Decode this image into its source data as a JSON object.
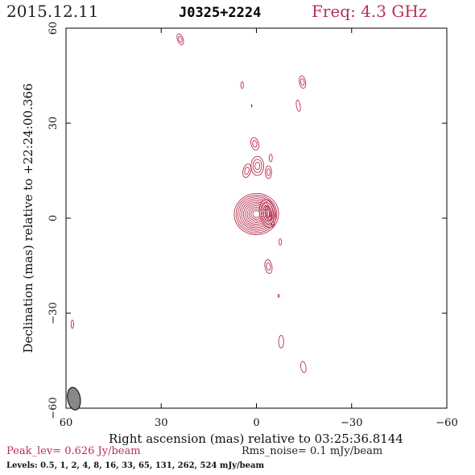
{
  "header": {
    "date": "2015.12.11",
    "source": "J0325+2224",
    "freq": "Freq: 4.3 GHz"
  },
  "footer": {
    "peak": "Peak_lev=  0.626 Jy/beam",
    "noise": "Rms_noise=  0.1 mJy/beam",
    "levels": "Levels: 0.5,    1,    2,    4,    8,   16,   33,   65,  131,  262,  524 mJy/beam"
  },
  "colors": {
    "contour": "#b8304f",
    "peak_text": "#b8304f",
    "beam_fill": "#888888"
  },
  "chart_data": {
    "type": "contour",
    "xlabel": "Right ascension (mas) relative to 03:25:36.8144",
    "ylabel": "Declination (mas) relative to +22:24:00.366",
    "xlim": [
      60,
      -60
    ],
    "ylim": [
      -60,
      60
    ],
    "x_ticks": [
      60,
      30,
      0,
      -30,
      -60
    ],
    "y_ticks": [
      60,
      30,
      0,
      -30,
      -60
    ],
    "x_tick_labels": [
      "60",
      "30",
      "0",
      "−30",
      "−60"
    ],
    "y_tick_labels": [
      "60",
      "30",
      "0",
      "−30",
      "−60"
    ],
    "contour_levels_mJy": [
      0.5,
      1,
      2,
      4,
      8,
      16,
      33,
      65,
      131,
      262,
      524
    ],
    "peak_Jy_per_beam": 0.626,
    "rms_noise_mJy_per_beam": 0.1,
    "beam": {
      "x": 57.5,
      "y": -57,
      "major_mas": 3.6,
      "minor_mas": 2.0,
      "pa_deg": -10
    },
    "components": [
      {
        "x": 0.0,
        "y": 1.3,
        "levels": 11,
        "rx": 7.0,
        "ry": 6.5,
        "rot": -5
      },
      {
        "x": -3.5,
        "y": 1.5,
        "levels": 4,
        "rx": 2.5,
        "ry": 4.5,
        "rot": -10
      },
      {
        "x": -0.3,
        "y": 16.5,
        "levels": 3,
        "rx": 2.0,
        "ry": 3.0,
        "rot": 0
      },
      {
        "x": 0.5,
        "y": 23.5,
        "levels": 2,
        "rx": 1.2,
        "ry": 2.0,
        "rot": -15
      },
      {
        "x": 3.0,
        "y": 15.0,
        "levels": 2,
        "rx": 1.2,
        "ry": 2.2,
        "rot": 15
      },
      {
        "x": -3.8,
        "y": 14.5,
        "levels": 2,
        "rx": 1.0,
        "ry": 2.0,
        "rot": 0
      },
      {
        "x": -4.5,
        "y": 19.0,
        "levels": 1,
        "rx": 0.5,
        "ry": 1.2,
        "rot": 0
      },
      {
        "x": -3.8,
        "y": 1.5,
        "levels": 2,
        "rx": 0.9,
        "ry": 2.2,
        "rot": -15
      },
      {
        "x": -5.2,
        "y": -2.0,
        "levels": 1,
        "rx": 0.4,
        "ry": 0.9,
        "rot": 0
      },
      {
        "x": -7.5,
        "y": -7.5,
        "levels": 1,
        "rx": 0.4,
        "ry": 1.0,
        "rot": 0
      },
      {
        "x": -3.8,
        "y": -15.3,
        "levels": 2,
        "rx": 1.1,
        "ry": 2.2,
        "rot": -10
      },
      {
        "x": -7.0,
        "y": -24.5,
        "levels": 1,
        "rx": 0.2,
        "ry": 0.5,
        "rot": 0
      },
      {
        "x": -7.8,
        "y": -39.0,
        "levels": 1,
        "rx": 0.8,
        "ry": 2.0,
        "rot": 0
      },
      {
        "x": -14.8,
        "y": -47.0,
        "levels": 1,
        "rx": 0.8,
        "ry": 1.8,
        "rot": -10
      },
      {
        "x": 24.0,
        "y": 56.5,
        "levels": 2,
        "rx": 0.9,
        "ry": 1.8,
        "rot": -20
      },
      {
        "x": 4.5,
        "y": 42.0,
        "levels": 1,
        "rx": 0.4,
        "ry": 1.1,
        "rot": 0
      },
      {
        "x": 1.5,
        "y": 35.5,
        "levels": 1,
        "rx": 0.1,
        "ry": 0.4,
        "rot": 0
      },
      {
        "x": -14.5,
        "y": 43.0,
        "levels": 2,
        "rx": 1.0,
        "ry": 2.0,
        "rot": -10
      },
      {
        "x": -13.2,
        "y": 35.5,
        "levels": 1,
        "rx": 0.6,
        "ry": 1.8,
        "rot": -10
      },
      {
        "x": 58.0,
        "y": -33.5,
        "levels": 1,
        "rx": 0.4,
        "ry": 1.3,
        "rot": 0
      }
    ]
  }
}
